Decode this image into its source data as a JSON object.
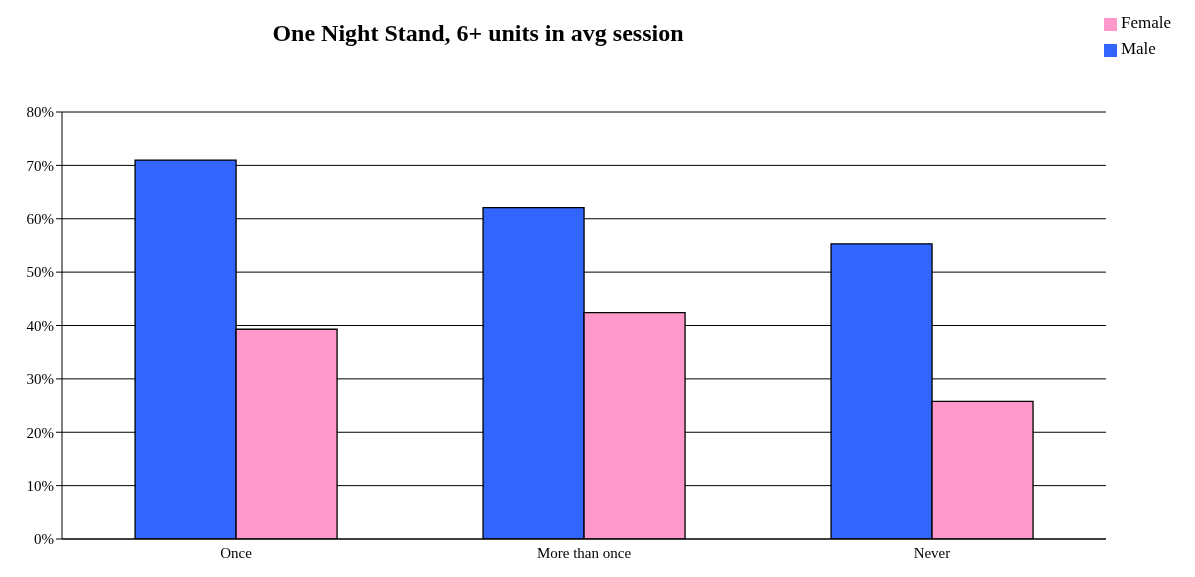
{
  "chart_data": {
    "type": "bar",
    "title": "One Night Stand, 6+ units in avg session",
    "categories": [
      "Once",
      "More than once",
      "Never"
    ],
    "series": [
      {
        "name": "Male",
        "color": "#3366ff",
        "values": [
          71.0,
          62.1,
          55.3
        ]
      },
      {
        "name": "Female",
        "color": "#ff99cc",
        "values": [
          39.3,
          42.4,
          25.8
        ]
      }
    ],
    "ylim": [
      0,
      80
    ],
    "yticks": [
      {
        "value": 0,
        "label": "0%"
      },
      {
        "value": 10,
        "label": "10%"
      },
      {
        "value": 20,
        "label": "20%"
      },
      {
        "value": 30,
        "label": "30%"
      },
      {
        "value": 40,
        "label": "40%"
      },
      {
        "value": 50,
        "label": "50%"
      },
      {
        "value": 60,
        "label": "60%"
      },
      {
        "value": 70,
        "label": "70%"
      },
      {
        "value": 80,
        "label": "80%"
      }
    ],
    "grid": "y",
    "legend": "top right"
  }
}
